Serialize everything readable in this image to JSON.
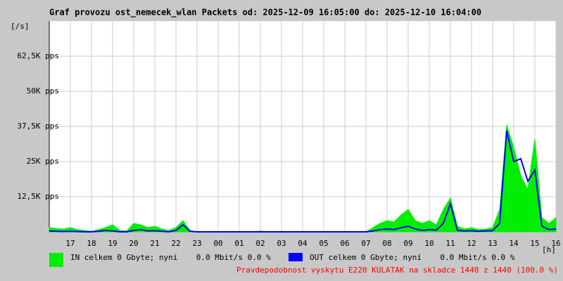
{
  "chart_data": {
    "type": "line",
    "title": "Graf provozu ost_nemecek_wlan Packets od: 2025-12-09 16:05:00 do: 2025-12-10 16:04:00",
    "y_unit": "[/s]",
    "x_unit": "[h]",
    "note": "Pravdepodobnost vyskytu E220 KULATAK na skladce 1440 z 1440 (100.0 %)",
    "note_color": "#ff0000",
    "categories": [
      null,
      null,
      null,
      "17",
      null,
      null,
      "18",
      null,
      null,
      "19",
      null,
      null,
      "20",
      null,
      null,
      "21",
      null,
      null,
      "22",
      null,
      null,
      "23",
      null,
      null,
      "00",
      null,
      null,
      "01",
      null,
      null,
      "02",
      null,
      null,
      "03",
      null,
      null,
      "04",
      null,
      null,
      "05",
      null,
      null,
      "06",
      null,
      null,
      "07",
      null,
      null,
      "08",
      null,
      null,
      "09",
      null,
      null,
      "10",
      null,
      null,
      "11",
      null,
      null,
      "12",
      null,
      null,
      "13",
      null,
      null,
      "14",
      null,
      null,
      "15",
      null,
      null,
      "16"
    ],
    "series": [
      {
        "name": "IN celkem 0 Gbyte; nyní    0.0 Mbit/s 0.0 %",
        "color": "#00ee00",
        "style": "area",
        "values": [
          1500,
          1200,
          1000,
          1500,
          800,
          500,
          200,
          800,
          1500,
          2500,
          500,
          300,
          3000,
          2500,
          1500,
          2000,
          1000,
          500,
          1500,
          4000,
          500,
          0,
          0,
          0,
          0,
          0,
          0,
          0,
          0,
          0,
          300,
          0,
          0,
          0,
          0,
          0,
          0,
          0,
          0,
          0,
          0,
          0,
          0,
          0,
          0,
          0,
          1500,
          3000,
          4000,
          3500,
          6000,
          8000,
          4000,
          3000,
          4000,
          2500,
          8000,
          12000,
          2000,
          1000,
          1500,
          800,
          1000,
          1500,
          8000,
          38000,
          30000,
          20000,
          15000,
          33000,
          5000,
          3000,
          5000
        ]
      },
      {
        "name": "OUT celkem 0 Gbyte; nyní    0.0 Mbit/s 0.0 %",
        "color": "#0000ff",
        "style": "line",
        "values": [
          300,
          200,
          100,
          200,
          100,
          0,
          0,
          200,
          500,
          300,
          0,
          0,
          500,
          800,
          300,
          400,
          200,
          0,
          500,
          2500,
          200,
          0,
          0,
          0,
          0,
          0,
          0,
          0,
          0,
          0,
          0,
          0,
          0,
          0,
          0,
          0,
          0,
          0,
          0,
          0,
          0,
          0,
          0,
          0,
          0,
          0,
          300,
          800,
          1000,
          800,
          1500,
          2000,
          1000,
          500,
          800,
          600,
          3000,
          10000,
          500,
          300,
          400,
          200,
          300,
          400,
          3000,
          36000,
          25000,
          26000,
          18000,
          22000,
          2000,
          800,
          1000
        ]
      }
    ],
    "ylim": [
      0,
      75000
    ],
    "yticks": [
      {
        "value": 12500,
        "label": "12,5K pps"
      },
      {
        "value": 25000,
        "label": "25K pps"
      },
      {
        "value": 37500,
        "label": "37,5K pps"
      },
      {
        "value": 50000,
        "label": "50K pps"
      },
      {
        "value": 62500,
        "label": "62,5K pps"
      }
    ],
    "grid": true
  }
}
